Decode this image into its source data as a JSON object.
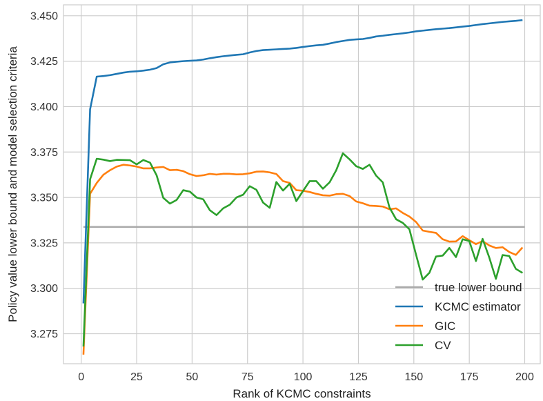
{
  "chart_data": {
    "type": "line",
    "xlabel": "Rank of KCMC constraints",
    "ylabel": "Policy value lower bound and model selection criteria",
    "xlim": [
      -8,
      207
    ],
    "ylim": [
      3.2585,
      3.456
    ],
    "xticks": [
      0,
      25,
      50,
      75,
      100,
      125,
      150,
      175,
      200
    ],
    "xtick_labels": [
      "0",
      "25",
      "50",
      "75",
      "100",
      "125",
      "150",
      "175",
      "200"
    ],
    "yticks": [
      3.275,
      3.3,
      3.325,
      3.35,
      3.375,
      3.4,
      3.425,
      3.45
    ],
    "ytick_labels": [
      "3.275",
      "3.300",
      "3.325",
      "3.350",
      "3.375",
      "3.400",
      "3.425",
      "3.450"
    ],
    "grid": true,
    "legend_position": "lower-right",
    "series": [
      {
        "name": "true lower bound",
        "color": "#aaaaaa",
        "x": [
          1,
          200
        ],
        "y": [
          3.3338,
          3.3338
        ]
      },
      {
        "name": "KCMC estimator",
        "color": "#1f77b4",
        "x": [
          1,
          4,
          7,
          10,
          13,
          16,
          19,
          22,
          25,
          28,
          31,
          34,
          37,
          40,
          43,
          46,
          49,
          52,
          55,
          58,
          61,
          64,
          67,
          70,
          73,
          76,
          79,
          82,
          85,
          88,
          91,
          94,
          97,
          100,
          103,
          106,
          109,
          112,
          115,
          118,
          121,
          124,
          127,
          130,
          133,
          136,
          139,
          142,
          145,
          148,
          151,
          154,
          157,
          160,
          163,
          166,
          169,
          172,
          175,
          178,
          181,
          184,
          187,
          190,
          193,
          196,
          199
        ],
        "y": [
          3.2917,
          3.3985,
          3.4165,
          3.4168,
          3.4173,
          3.418,
          3.4187,
          3.4192,
          3.4194,
          3.4198,
          3.4203,
          3.4212,
          3.4233,
          3.4243,
          3.4247,
          3.425,
          3.4252,
          3.4254,
          3.4259,
          3.4266,
          3.4272,
          3.4277,
          3.4281,
          3.4285,
          3.4288,
          3.4298,
          3.4306,
          3.4311,
          3.4313,
          3.4315,
          3.4317,
          3.4319,
          3.4323,
          3.4328,
          3.4333,
          3.4337,
          3.434,
          3.4347,
          3.4355,
          3.4361,
          3.4367,
          3.437,
          3.4372,
          3.4378,
          3.4386,
          3.439,
          3.4395,
          3.4399,
          3.4403,
          3.4408,
          3.4414,
          3.4418,
          3.4422,
          3.4426,
          3.4429,
          3.4432,
          3.4436,
          3.444,
          3.4444,
          3.4449,
          3.4454,
          3.4458,
          3.4462,
          3.4466,
          3.4469,
          3.4472,
          3.4476
        ]
      },
      {
        "name": "GIC",
        "color": "#ff7f0e",
        "x": [
          1,
          4,
          7,
          10,
          13,
          16,
          19,
          22,
          25,
          28,
          31,
          34,
          37,
          40,
          43,
          46,
          49,
          52,
          55,
          58,
          61,
          64,
          67,
          70,
          73,
          76,
          79,
          82,
          85,
          88,
          91,
          94,
          97,
          100,
          103,
          106,
          109,
          112,
          115,
          118,
          121,
          124,
          127,
          130,
          133,
          136,
          139,
          142,
          145,
          148,
          151,
          154,
          157,
          160,
          163,
          166,
          169,
          172,
          175,
          178,
          181,
          184,
          187,
          190,
          193,
          196,
          199
        ],
        "y": [
          3.2635,
          3.352,
          3.358,
          3.3625,
          3.365,
          3.367,
          3.368,
          3.3676,
          3.367,
          3.366,
          3.366,
          3.3665,
          3.3668,
          3.365,
          3.3652,
          3.3645,
          3.3628,
          3.3618,
          3.3622,
          3.363,
          3.3626,
          3.363,
          3.363,
          3.3627,
          3.3628,
          3.3633,
          3.3642,
          3.3643,
          3.3638,
          3.3629,
          3.359,
          3.358,
          3.354,
          3.3537,
          3.353,
          3.352,
          3.3512,
          3.351,
          3.3518,
          3.352,
          3.3508,
          3.3478,
          3.3468,
          3.3455,
          3.3453,
          3.345,
          3.3435,
          3.344,
          3.3415,
          3.3395,
          3.3365,
          3.3318,
          3.3311,
          3.3305,
          3.327,
          3.3257,
          3.3258,
          3.3287,
          3.3265,
          3.3243,
          3.326,
          3.3236,
          3.3222,
          3.3226,
          3.32,
          3.3184,
          3.3225
        ]
      },
      {
        "name": "CV",
        "color": "#2ca02c",
        "x": [
          1,
          4,
          7,
          10,
          13,
          16,
          19,
          22,
          25,
          28,
          31,
          34,
          37,
          40,
          43,
          46,
          49,
          52,
          55,
          58,
          61,
          64,
          67,
          70,
          73,
          76,
          79,
          82,
          85,
          88,
          91,
          94,
          97,
          100,
          103,
          106,
          109,
          112,
          115,
          118,
          121,
          124,
          127,
          130,
          133,
          136,
          139,
          142,
          145,
          148,
          151,
          154,
          157,
          160,
          163,
          166,
          169,
          172,
          175,
          178,
          181,
          184,
          187,
          190,
          193,
          196,
          199
        ],
        "y": [
          3.268,
          3.36,
          3.3713,
          3.3708,
          3.37,
          3.3707,
          3.3706,
          3.3705,
          3.3682,
          3.3706,
          3.3692,
          3.3622,
          3.3498,
          3.3466,
          3.3486,
          3.354,
          3.3532,
          3.35,
          3.349,
          3.343,
          3.3403,
          3.344,
          3.346,
          3.35,
          3.3515,
          3.3562,
          3.3542,
          3.3472,
          3.3443,
          3.3585,
          3.3538,
          3.3575,
          3.348,
          3.3535,
          3.359,
          3.359,
          3.3548,
          3.3583,
          3.365,
          3.3743,
          3.371,
          3.3672,
          3.3657,
          3.368,
          3.362,
          3.3583,
          3.3445,
          3.338,
          3.336,
          3.3325,
          3.3185,
          3.3048,
          3.3085,
          3.3175,
          3.318,
          3.3222,
          3.3172,
          3.327,
          3.326,
          3.315,
          3.3272,
          3.317,
          3.3052,
          3.3183,
          3.3178,
          3.3107,
          3.3085
        ]
      }
    ]
  }
}
